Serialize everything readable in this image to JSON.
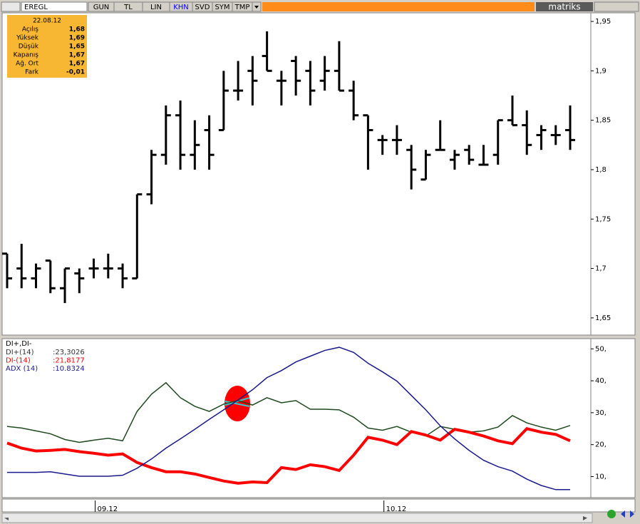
{
  "toolbar": {
    "symbol": "EREGL",
    "buttons": [
      "GUN",
      "TL",
      "LIN",
      "KHN",
      "SVD",
      "SYM",
      "TMP"
    ],
    "brand": "matriks"
  },
  "info_box": {
    "date": "22.08.12",
    "rows": [
      [
        "Açılış",
        "1,68"
      ],
      [
        "Yüksek",
        "1,69"
      ],
      [
        "Düşük",
        "1,65"
      ],
      [
        "Kapanış",
        "1,67"
      ],
      [
        "Ağ. Ort",
        "1,67"
      ],
      [
        "Fark",
        "-0,01"
      ]
    ]
  },
  "chart_data": [
    {
      "type": "ohlc",
      "color": "#000000",
      "categories": [
        null,
        null,
        null,
        null,
        null,
        null,
        "09.12",
        null,
        null,
        null,
        null,
        null,
        null,
        null,
        null,
        null,
        null,
        null,
        null,
        null,
        null,
        null,
        null,
        null,
        null,
        null,
        "10.12",
        null,
        null,
        null,
        null,
        null,
        null,
        null,
        null,
        null,
        null,
        null,
        null,
        null
      ],
      "open": [
        1.715,
        1.7,
        1.69,
        1.708,
        1.68,
        1.695,
        1.7,
        1.7,
        1.7,
        1.69,
        1.775,
        1.815,
        1.855,
        1.815,
        1.84,
        1.84,
        1.88,
        1.9,
        1.915,
        1.89,
        1.91,
        1.9,
        1.89,
        1.9,
        1.88,
        1.855,
        1.83,
        1.83,
        1.82,
        1.79,
        1.82,
        1.81,
        1.82,
        1.805,
        1.815,
        1.85,
        1.845,
        1.835,
        1.835,
        1.84
      ],
      "high": [
        1.715,
        1.725,
        1.705,
        1.708,
        1.7,
        1.7,
        1.71,
        1.715,
        1.705,
        1.775,
        1.82,
        1.865,
        1.87,
        1.85,
        1.855,
        1.9,
        1.91,
        1.915,
        1.94,
        1.9,
        1.915,
        1.91,
        1.915,
        1.93,
        1.89,
        1.855,
        1.835,
        1.845,
        1.825,
        1.82,
        1.85,
        1.82,
        1.825,
        1.825,
        1.85,
        1.875,
        1.86,
        1.845,
        1.845,
        1.865
      ],
      "low": [
        1.68,
        1.68,
        1.68,
        1.675,
        1.665,
        1.675,
        1.69,
        1.69,
        1.68,
        1.69,
        1.765,
        1.805,
        1.8,
        1.8,
        1.8,
        1.84,
        1.87,
        1.865,
        1.9,
        1.865,
        1.875,
        1.865,
        1.88,
        1.88,
        1.85,
        1.8,
        1.815,
        1.815,
        1.78,
        1.79,
        1.82,
        1.8,
        1.805,
        1.805,
        1.805,
        1.845,
        1.815,
        1.82,
        1.825,
        1.82
      ],
      "close": [
        1.69,
        1.69,
        1.7,
        1.68,
        1.7,
        1.69,
        1.7,
        1.7,
        1.69,
        1.775,
        1.815,
        1.855,
        1.815,
        1.825,
        1.815,
        1.88,
        1.88,
        1.89,
        1.9,
        1.89,
        1.89,
        1.88,
        1.9,
        1.88,
        1.855,
        1.84,
        1.83,
        1.83,
        1.8,
        1.815,
        1.82,
        1.815,
        1.81,
        1.805,
        1.85,
        1.845,
        1.825,
        1.84,
        1.835,
        1.83
      ],
      "ylim": [
        1.6326,
        1.9587
      ],
      "yticks": [
        {
          "value": 1.65,
          "label": "1,65"
        },
        {
          "value": 1.7,
          "label": "1,7"
        },
        {
          "value": 1.75,
          "label": "1,75"
        },
        {
          "value": 1.8,
          "label": "1,8"
        },
        {
          "value": 1.85,
          "label": "1,85"
        },
        {
          "value": 1.9,
          "label": "1,9"
        },
        {
          "value": 1.95,
          "label": "1,95"
        }
      ]
    },
    {
      "type": "line",
      "title": "DI+,DI-",
      "series": [
        {
          "name": "DI+(14)",
          "reading": ":23,3026",
          "color": "#1f4a1f",
          "values": [
            25.7,
            25.2,
            24.3,
            23.4,
            21.6,
            20.7,
            21.4,
            22,
            21.2,
            30.4,
            35.8,
            39.4,
            34.7,
            32,
            30.4,
            32.7,
            33.8,
            32.4,
            34.7,
            33.1,
            33.8,
            31.1,
            31.1,
            30.9,
            28.6,
            25.2,
            24.5,
            25.7,
            23.9,
            22.7,
            25.7,
            24.8,
            23.9,
            24.3,
            25.5,
            29.1,
            26.8,
            25.5,
            24.5,
            26
          ]
        },
        {
          "name": "DI-(14)",
          "reading": ":21,8177",
          "color": "#ff0000",
          "values": [
            20.5,
            18.9,
            18,
            18.2,
            18.5,
            17.8,
            17.3,
            16.7,
            17.1,
            14.4,
            12.8,
            11.5,
            11.5,
            10.8,
            9.7,
            8.6,
            7.9,
            8.3,
            8.1,
            12.8,
            12.2,
            13.7,
            13.1,
            11.9,
            16.7,
            22.3,
            21.4,
            20,
            24.1,
            23,
            21.4,
            24.8,
            23.9,
            22.7,
            21.2,
            20.3,
            25,
            23.9,
            23.2,
            21.2
          ]
        },
        {
          "name": "ADX (14)",
          "reading": ":10.8324",
          "color": "#1a1a8c",
          "values": [
            11.3,
            11.3,
            11.3,
            11.5,
            10.8,
            10.1,
            10.1,
            10.1,
            10.4,
            12.6,
            15.5,
            18.9,
            21.8,
            24.8,
            27.9,
            30.9,
            34,
            37.2,
            41,
            43.2,
            45.9,
            47.7,
            49.5,
            50.5,
            48.9,
            45.5,
            42.8,
            39.9,
            35.4,
            30.9,
            25.9,
            21.8,
            18.2,
            15.1,
            13.1,
            11.7,
            9.2,
            7.2,
            5.9,
            5.9
          ]
        }
      ],
      "ylim": [
        3.4,
        53.2
      ],
      "yticks": [
        {
          "value": 10,
          "label": "10,"
        },
        {
          "value": 20,
          "label": "20,"
        },
        {
          "value": 30,
          "label": "30,"
        },
        {
          "value": 40,
          "label": "40,"
        },
        {
          "value": 50,
          "label": "50,"
        }
      ]
    }
  ]
}
